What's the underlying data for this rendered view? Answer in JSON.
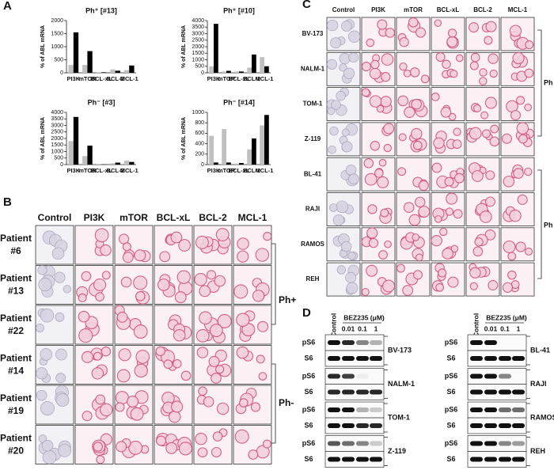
{
  "panel_labels": [
    "A",
    "B",
    "C",
    "D"
  ],
  "chart_data": [
    {
      "type": "bar",
      "title": "Ph⁺ [#13]",
      "ylabel": "% of ABL mRNA",
      "categories": [
        "PI3K",
        "mTOR",
        "BCL-xL",
        "BCL-2",
        "MCL-1"
      ],
      "series": [
        {
          "color": "#c0c0c0",
          "values": [
            300,
            300,
            20,
            130,
            100
          ]
        },
        {
          "color": "#000000",
          "values": [
            1550,
            830,
            20,
            80,
            280
          ]
        }
      ],
      "ylim": [
        0,
        2000
      ],
      "yticks": [
        0,
        500,
        1000,
        1500,
        2000
      ]
    },
    {
      "type": "bar",
      "title": "Ph⁺ [#10]",
      "ylabel": "% of ABL mRNA",
      "categories": [
        "PI3K",
        "mTOR",
        "BCL-xL",
        "BCL-2",
        "MCL-1"
      ],
      "series": [
        {
          "color": "#c0c0c0",
          "values": [
            500,
            100,
            100,
            400,
            1200
          ]
        },
        {
          "color": "#000000",
          "values": [
            3750,
            150,
            100,
            1400,
            500
          ]
        }
      ],
      "ylim": [
        0,
        4000
      ],
      "yticks": [
        0,
        500,
        1000,
        1500,
        2000,
        2500,
        3000,
        3500,
        4000
      ]
    },
    {
      "type": "bar",
      "title": "Ph⁻ [#3]",
      "ylabel": "% of ABL mRNA",
      "categories": [
        "PI3K",
        "mTOR",
        "BCL-xL",
        "BCL-2",
        "MCL-1"
      ],
      "series": [
        {
          "color": "#c0c0c0",
          "values": [
            1800,
            650,
            20,
            100,
            300
          ]
        },
        {
          "color": "#000000",
          "values": [
            3650,
            1450,
            20,
            150,
            200
          ]
        }
      ],
      "ylim": [
        0,
        4000
      ],
      "yticks": [
        0,
        500,
        1000,
        1500,
        2000,
        2500,
        3000,
        3500,
        4000
      ]
    },
    {
      "type": "bar",
      "title": "Ph⁻ [#14]",
      "ylabel": "% of ABL mRNA",
      "categories": [
        "PI3K",
        "mTOR",
        "BCL-xL",
        "BCL-2",
        "MCL-1"
      ],
      "series": [
        {
          "color": "#c0c0c0",
          "values": [
            550,
            680,
            20,
            290,
            750
          ]
        },
        {
          "color": "#000000",
          "values": [
            40,
            40,
            30,
            500,
            950
          ]
        }
      ],
      "ylim": [
        0,
        1000
      ],
      "yticks": [
        0,
        200,
        400,
        600,
        800,
        1000
      ]
    }
  ],
  "panel_b": {
    "columns": [
      "Control",
      "PI3K",
      "mTOR",
      "BCL-xL",
      "BCL-2",
      "MCL-1"
    ],
    "rows": [
      [
        "Patient",
        "#6"
      ],
      [
        "Patient",
        "#13"
      ],
      [
        "Patient",
        "#22"
      ],
      [
        "Patient",
        "#14"
      ],
      [
        "Patient",
        "#19"
      ],
      [
        "Patient",
        "#20"
      ]
    ],
    "groups": [
      "Ph+",
      "Ph-"
    ]
  },
  "panel_c": {
    "columns": [
      "Control",
      "PI3K",
      "mTOR",
      "BCL-xL",
      "BCL-2",
      "MCL-1"
    ],
    "rows": [
      "BV-173",
      "NALM-1",
      "TOM-1",
      "Z-119",
      "BL-41",
      "RAJI",
      "RAMOS",
      "REH"
    ],
    "groups": [
      "Ph",
      "Ph"
    ]
  },
  "panel_d": {
    "control": "Control",
    "treatment": "BEZ235 (μM)",
    "doses": [
      "0.01",
      "0.1",
      "1"
    ],
    "proteins": [
      "pS6",
      "S6"
    ],
    "left": [
      "BV-173",
      "NALM-1",
      "TOM-1",
      "Z-119"
    ],
    "right": [
      "BL-41",
      "RAJI",
      "RAMOS",
      "REH"
    ]
  }
}
